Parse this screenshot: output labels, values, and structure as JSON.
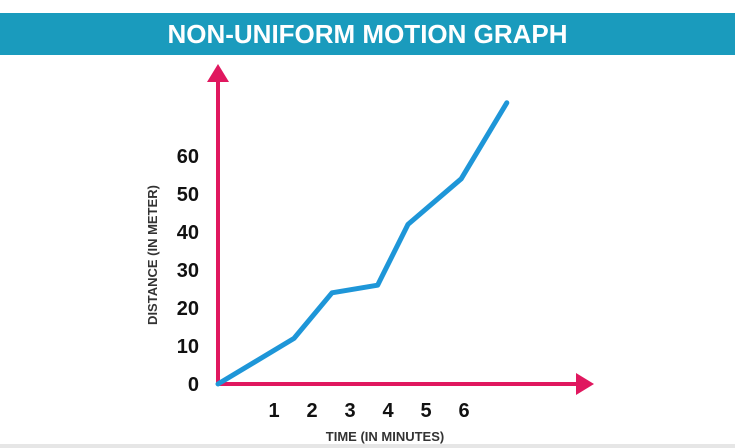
{
  "title": "NON-UNIFORM MOTION GRAPH",
  "colors": {
    "banner": "#1a9bbd",
    "axes": "#e0185f",
    "line": "#1e96d8"
  },
  "chart_data": {
    "type": "line",
    "title": "NON-UNIFORM MOTION GRAPH",
    "xlabel": "TIME (IN MINUTES)",
    "ylabel": "DISTANCE (IN METER)",
    "x_ticks": [
      "1",
      "2",
      "3",
      "4",
      "5",
      "6"
    ],
    "y_ticks": [
      "0",
      "10",
      "20",
      "30",
      "40",
      "50",
      "60"
    ],
    "xlim": [
      0,
      7.5
    ],
    "ylim": [
      0,
      70
    ],
    "grid": false,
    "series": [
      {
        "x": [
          0,
          2,
          3,
          4.2,
          5,
          6.4,
          7.6
        ],
        "y": [
          0,
          12,
          24,
          26,
          42,
          54,
          74
        ]
      }
    ]
  }
}
